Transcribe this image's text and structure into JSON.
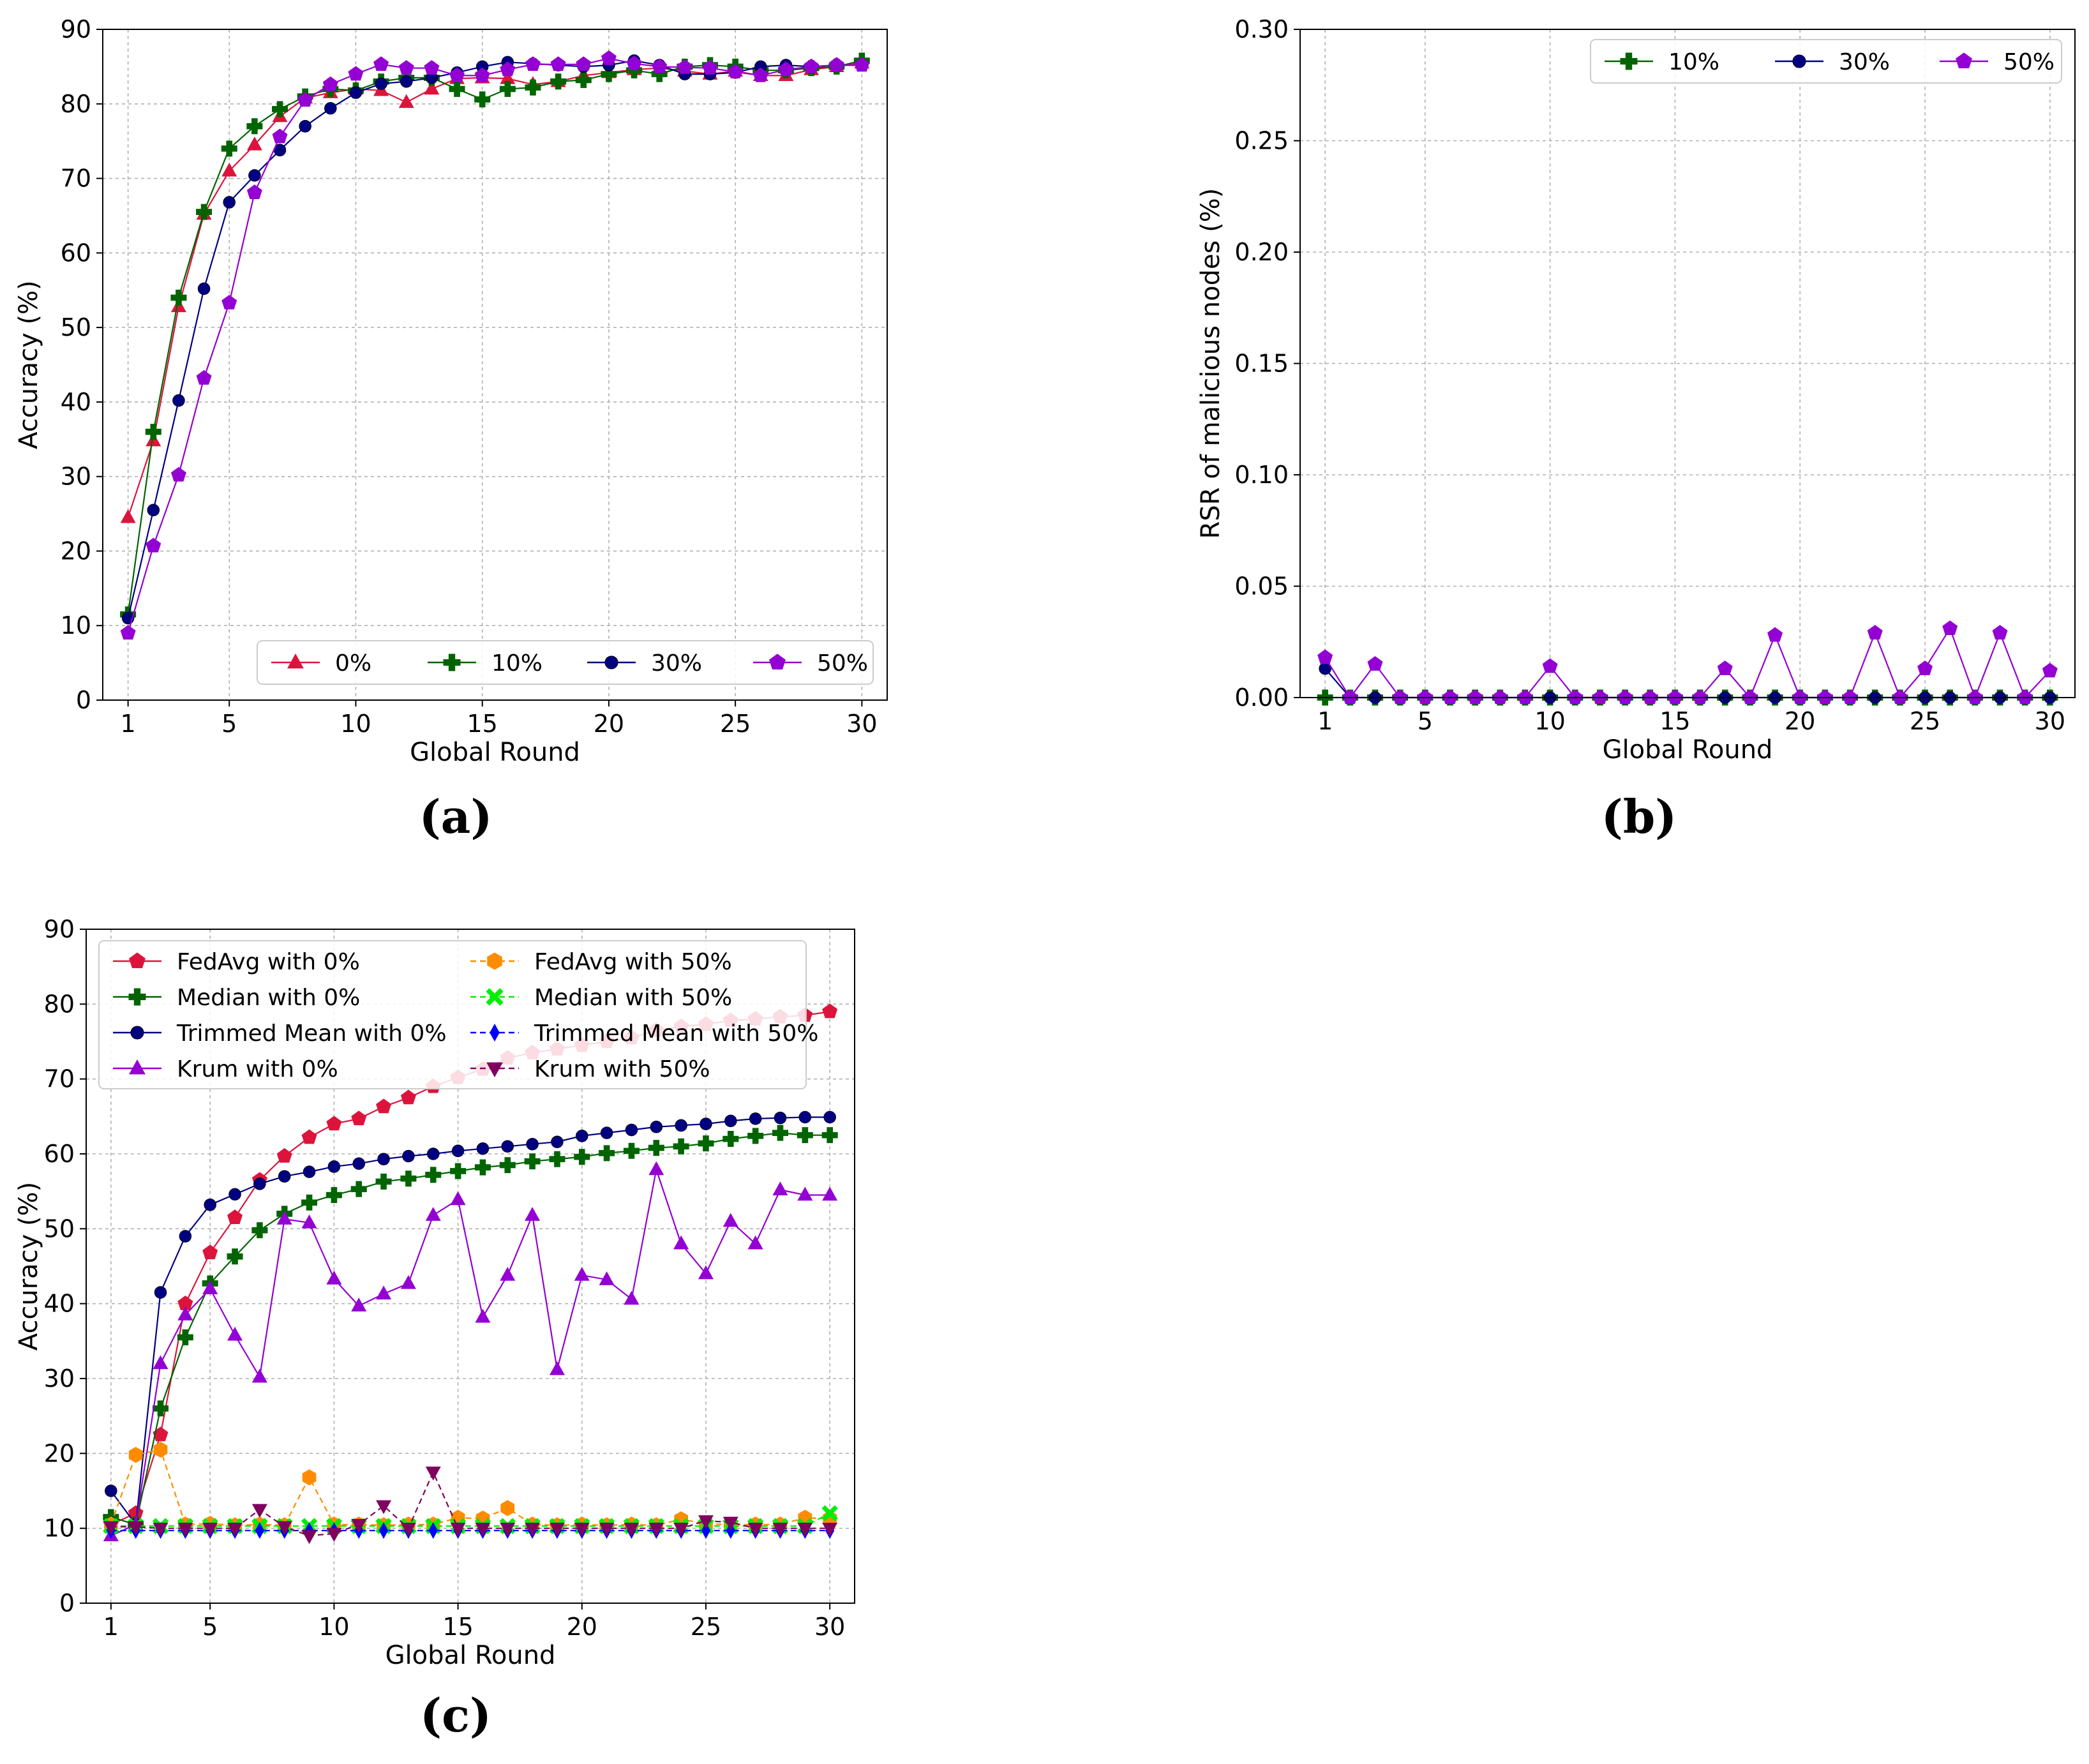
{
  "panel_labels": [
    "(a)",
    "(b)",
    "(c)"
  ],
  "chart_data": [
    {
      "id": "a",
      "type": "line",
      "title": "",
      "xlabel": "Global Round",
      "ylabel": "Accuracy (%)",
      "xlim": [
        0,
        31
      ],
      "ylim": [
        0,
        90
      ],
      "xticks": [
        1,
        5,
        10,
        15,
        20,
        25,
        30
      ],
      "yticks": [
        0,
        10,
        20,
        30,
        40,
        50,
        60,
        70,
        80,
        90
      ],
      "grid": true,
      "legend_position": "lower-right",
      "legend_columns": 4,
      "x": [
        1,
        2,
        3,
        4,
        5,
        6,
        7,
        8,
        9,
        10,
        11,
        12,
        13,
        14,
        15,
        16,
        17,
        18,
        19,
        20,
        21,
        22,
        23,
        24,
        25,
        26,
        27,
        28,
        29,
        30
      ],
      "series": [
        {
          "name": "0%",
          "color": "#dc143c",
          "marker": "triangle-up",
          "dash": "solid",
          "values": [
            24.5,
            34.8,
            52.8,
            65.2,
            71.0,
            74.5,
            78.3,
            80.8,
            81.5,
            82.0,
            81.8,
            80.2,
            82.0,
            83.4,
            83.5,
            83.4,
            82.6,
            83.0,
            83.8,
            84.2,
            84.6,
            84.8,
            84.4,
            84.0,
            84.4,
            83.8,
            83.8,
            84.6,
            85.0,
            85.5
          ]
        },
        {
          "name": "10%",
          "color": "#006400",
          "marker": "plus",
          "dash": "solid",
          "values": [
            11.5,
            36.0,
            54.0,
            65.5,
            74.0,
            77.0,
            79.3,
            81.0,
            82.0,
            81.8,
            83.0,
            83.5,
            83.5,
            82.0,
            80.6,
            82.0,
            82.2,
            83.0,
            83.2,
            84.0,
            84.5,
            84.0,
            85.0,
            85.2,
            85.0,
            84.5,
            84.5,
            84.8,
            85.0,
            85.8
          ]
        },
        {
          "name": "30%",
          "color": "#000080",
          "marker": "circle",
          "dash": "solid",
          "values": [
            11.0,
            25.5,
            40.2,
            55.2,
            66.8,
            70.4,
            73.8,
            77.0,
            79.4,
            81.5,
            82.7,
            83.0,
            83.5,
            84.2,
            85.0,
            85.6,
            85.4,
            85.2,
            85.0,
            85.2,
            85.8,
            85.2,
            84.0,
            84.0,
            84.2,
            85.0,
            85.2,
            85.0,
            85.2,
            85.2
          ]
        },
        {
          "name": "50%",
          "color": "#9400d3",
          "marker": "pentagon",
          "dash": "solid",
          "values": [
            9.0,
            20.7,
            30.2,
            43.2,
            53.3,
            68.1,
            75.6,
            80.5,
            82.6,
            84.0,
            85.3,
            84.8,
            84.8,
            83.8,
            83.8,
            84.6,
            85.3,
            85.3,
            85.3,
            86.1,
            85.4,
            85.0,
            84.9,
            84.8,
            84.3,
            83.8,
            84.6,
            85.0,
            85.2,
            85.2
          ]
        }
      ]
    },
    {
      "id": "b",
      "type": "line",
      "title": "",
      "xlabel": "Global Round",
      "ylabel": "RSR of malicious nodes (%)",
      "xlim": [
        0,
        31
      ],
      "ylim": [
        0,
        0.3
      ],
      "xticks": [
        1,
        5,
        10,
        15,
        20,
        25,
        30
      ],
      "yticks": [
        0.0,
        0.05,
        0.1,
        0.15,
        0.2,
        0.25,
        0.3
      ],
      "ytick_labels": [
        "0.00",
        "0.05",
        "0.10",
        "0.15",
        "0.20",
        "0.25",
        "0.30"
      ],
      "grid": true,
      "legend_position": "upper-right",
      "legend_columns": 3,
      "x": [
        1,
        2,
        3,
        4,
        5,
        6,
        7,
        8,
        9,
        10,
        11,
        12,
        13,
        14,
        15,
        16,
        17,
        18,
        19,
        20,
        21,
        22,
        23,
        24,
        25,
        26,
        27,
        28,
        29,
        30
      ],
      "series": [
        {
          "name": "10%",
          "color": "#006400",
          "marker": "plus",
          "dash": "solid",
          "values": [
            0,
            0,
            0,
            0,
            0,
            0,
            0,
            0,
            0,
            0,
            0,
            0,
            0,
            0,
            0,
            0,
            0,
            0,
            0,
            0,
            0,
            0,
            0,
            0,
            0,
            0,
            0,
            0,
            0,
            0
          ]
        },
        {
          "name": "30%",
          "color": "#000080",
          "marker": "circle",
          "dash": "solid",
          "values": [
            0.013,
            0,
            0,
            0,
            0,
            0,
            0,
            0,
            0,
            0,
            0,
            0,
            0,
            0,
            0,
            0,
            0,
            0,
            0,
            0,
            0,
            0,
            0,
            0,
            0,
            0,
            0,
            0,
            0,
            0
          ]
        },
        {
          "name": "50%",
          "color": "#9400d3",
          "marker": "pentagon",
          "dash": "solid",
          "values": [
            0.018,
            0,
            0.015,
            0,
            0,
            0,
            0,
            0,
            0,
            0.014,
            0,
            0,
            0,
            0,
            0,
            0,
            0.013,
            0,
            0.028,
            0,
            0,
            0,
            0.029,
            0,
            0.013,
            0.031,
            0,
            0.029,
            0,
            0.012
          ]
        }
      ]
    },
    {
      "id": "c",
      "type": "line",
      "title": "",
      "xlabel": "Global Round",
      "ylabel": "Accuracy (%)",
      "xlim": [
        0,
        31
      ],
      "ylim": [
        0,
        90
      ],
      "xticks": [
        1,
        5,
        10,
        15,
        20,
        25,
        30
      ],
      "yticks": [
        0,
        10,
        20,
        30,
        40,
        50,
        60,
        70,
        80,
        90
      ],
      "grid": true,
      "legend_position": "upper-left",
      "legend_columns": 2,
      "x": [
        1,
        2,
        3,
        4,
        5,
        6,
        7,
        8,
        9,
        10,
        11,
        12,
        13,
        14,
        15,
        16,
        17,
        18,
        19,
        20,
        21,
        22,
        23,
        24,
        25,
        26,
        27,
        28,
        29,
        30
      ],
      "series": [
        {
          "name": "FedAvg with 0%",
          "color": "#dc143c",
          "marker": "pentagon",
          "dash": "solid",
          "values": [
            10.5,
            12.0,
            22.5,
            40.0,
            46.8,
            51.5,
            56.5,
            59.7,
            62.2,
            64.0,
            64.7,
            66.3,
            67.5,
            69.0,
            70.2,
            71.3,
            72.8,
            73.5,
            74.0,
            74.5,
            75.0,
            75.5,
            76.5,
            77.0,
            77.3,
            77.8,
            78.0,
            78.3,
            78.5,
            79.0
          ]
        },
        {
          "name": "Median with 0%",
          "color": "#006400",
          "marker": "plus",
          "dash": "solid",
          "values": [
            11.5,
            10.5,
            26.0,
            35.5,
            42.7,
            46.3,
            49.8,
            52.0,
            53.5,
            54.5,
            55.3,
            56.3,
            56.7,
            57.2,
            57.7,
            58.2,
            58.5,
            59.0,
            59.3,
            59.6,
            60.1,
            60.4,
            60.8,
            61.0,
            61.4,
            62.0,
            62.4,
            62.8,
            62.5,
            62.5
          ]
        },
        {
          "name": "Trimmed Mean with 0%",
          "color": "#000080",
          "marker": "circle",
          "dash": "solid",
          "values": [
            15.0,
            10.5,
            41.5,
            49.0,
            53.2,
            54.6,
            56.0,
            57.0,
            57.6,
            58.3,
            58.7,
            59.3,
            59.7,
            60.0,
            60.4,
            60.7,
            61.0,
            61.3,
            61.6,
            62.4,
            62.8,
            63.2,
            63.6,
            63.8,
            64.0,
            64.4,
            64.7,
            64.8,
            64.9,
            64.9
          ]
        },
        {
          "name": "Krum with 0%",
          "color": "#9400d3",
          "marker": "triangle-up",
          "dash": "solid",
          "values": [
            9.0,
            10.5,
            32.0,
            38.5,
            42.0,
            35.8,
            30.2,
            51.3,
            50.8,
            43.3,
            39.7,
            41.3,
            42.7,
            51.8,
            53.9,
            38.2,
            43.8,
            51.8,
            31.2,
            43.8,
            43.2,
            40.6,
            57.9,
            48.0,
            44.0,
            51.0,
            48.0,
            55.2,
            54.5,
            54.5
          ]
        },
        {
          "name": "FedAvg with 50%",
          "color": "#ff8c00",
          "marker": "hexagon",
          "dash": "dashed",
          "values": [
            10.5,
            19.8,
            20.5,
            10.5,
            10.6,
            10.4,
            10.5,
            10.4,
            16.8,
            10.5,
            10.5,
            10.4,
            10.5,
            10.5,
            11.4,
            11.3,
            12.7,
            10.5,
            10.4,
            10.5,
            10.4,
            10.5,
            10.4,
            11.2,
            10.6,
            10.5,
            10.5,
            10.5,
            11.4,
            11.3
          ]
        },
        {
          "name": "Median with 50%",
          "color": "#00ee00",
          "marker": "x-filled",
          "dash": "dashed",
          "values": [
            10.3,
            10.3,
            10.3,
            10.3,
            10.3,
            10.3,
            10.3,
            10.3,
            10.3,
            10.3,
            10.3,
            10.3,
            10.3,
            10.3,
            10.3,
            10.3,
            10.3,
            10.3,
            10.3,
            10.3,
            10.3,
            10.3,
            10.3,
            10.3,
            10.3,
            10.3,
            10.3,
            10.3,
            10.3,
            12.0
          ]
        },
        {
          "name": "Trimmed Mean with 50%",
          "color": "#0000ff",
          "marker": "thin-diamond",
          "dash": "dashed",
          "values": [
            9.7,
            9.7,
            9.7,
            9.7,
            9.7,
            9.7,
            9.7,
            9.7,
            9.7,
            9.7,
            9.7,
            9.7,
            9.7,
            9.7,
            9.7,
            9.7,
            9.7,
            9.7,
            9.7,
            9.7,
            9.7,
            9.7,
            9.7,
            9.7,
            9.7,
            9.7,
            9.7,
            9.7,
            9.7,
            9.7
          ]
        },
        {
          "name": "Krum with 50%",
          "color": "#800060",
          "marker": "triangle-down",
          "dash": "dashed",
          "values": [
            10.2,
            10.2,
            10.0,
            10.0,
            10.0,
            10.0,
            12.5,
            10.2,
            9.0,
            9.3,
            10.5,
            13.0,
            10.0,
            17.5,
            10.0,
            10.0,
            10.0,
            10.0,
            10.0,
            10.0,
            10.0,
            10.0,
            10.0,
            10.0,
            11.0,
            10.8,
            10.0,
            10.0,
            10.0,
            10.0
          ]
        }
      ]
    }
  ]
}
